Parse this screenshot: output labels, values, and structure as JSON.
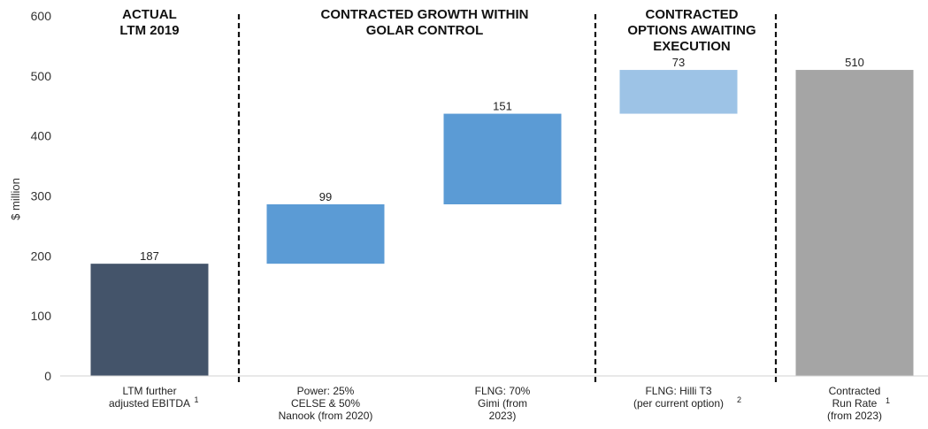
{
  "chart_data": {
    "type": "bar",
    "subtype": "waterfall",
    "ylabel": "$ million",
    "ylim": [
      0,
      600
    ],
    "yticks": [
      "0",
      "100",
      "200",
      "300",
      "400",
      "500",
      "600"
    ],
    "grid": false,
    "sections": [
      {
        "label_lines": [
          "ACTUAL",
          "LTM 2019"
        ]
      },
      {
        "label_lines": [
          "CONTRACTED GROWTH WITHIN",
          "GOLAR CONTROL"
        ]
      },
      {
        "label_lines": [
          "CONTRACTED",
          "OPTIONS AWAITING",
          "EXECUTION"
        ]
      }
    ],
    "bars": [
      {
        "label_lines": [
          "LTM further",
          "adjusted EBITDA"
        ],
        "footnote": "1",
        "base": 0,
        "value": 187,
        "value_label": "187",
        "color": "#44546a"
      },
      {
        "label_lines": [
          "Power: 25%",
          "CELSE & 50%",
          "Nanook (from 2020)"
        ],
        "footnote": "",
        "base": 187,
        "value": 99,
        "value_label": "99",
        "color": "#5b9bd5"
      },
      {
        "label_lines": [
          "FLNG: 70%",
          "Gimi (from",
          "2023)"
        ],
        "footnote": "",
        "base": 286,
        "value": 151,
        "value_label": "151",
        "color": "#5b9bd5"
      },
      {
        "label_lines": [
          "FLNG: Hilli T3",
          "(per current option)"
        ],
        "footnote": "2",
        "base": 437,
        "value": 73,
        "value_label": "73",
        "color": "#9dc3e6"
      },
      {
        "label_lines": [
          "Contracted",
          "Run Rate",
          "(from 2023)"
        ],
        "footnote": "1",
        "base": 0,
        "value": 510,
        "value_label": "510",
        "color": "#a5a5a5"
      }
    ]
  }
}
